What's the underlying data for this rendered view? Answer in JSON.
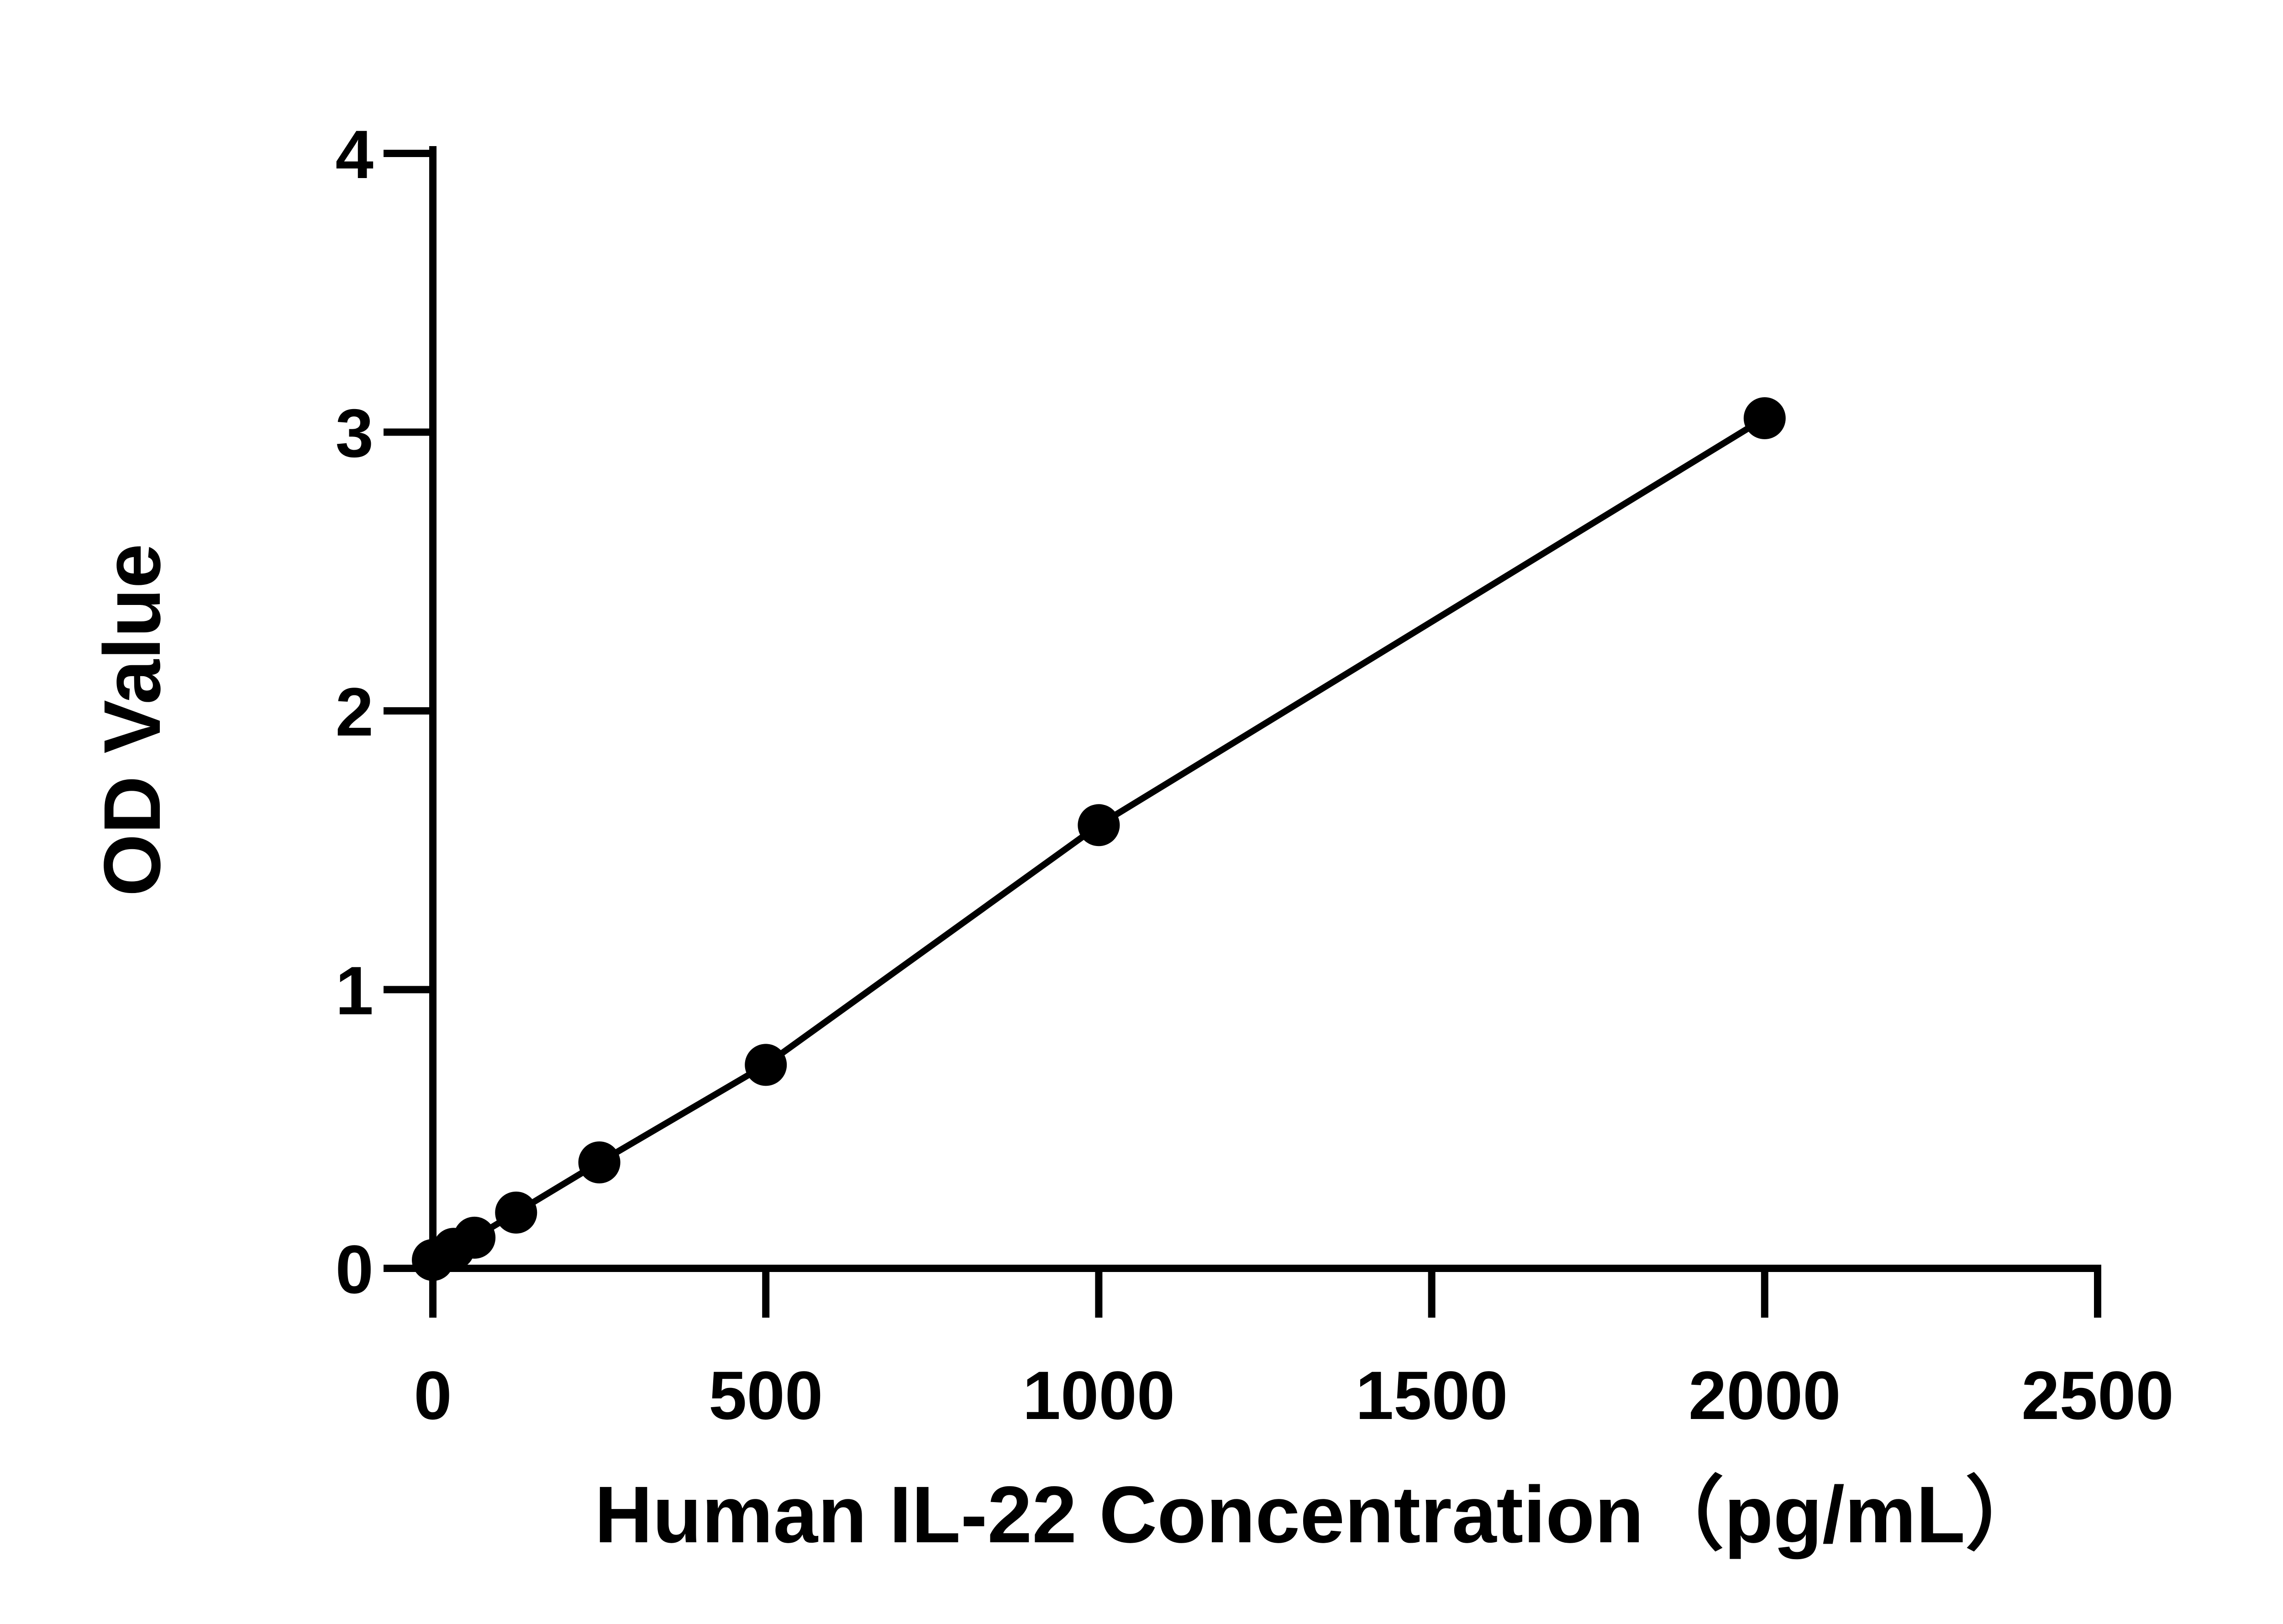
{
  "chart_data": {
    "type": "line",
    "title": "",
    "xlabel": "Human IL-22 Concentration（pg/mL）",
    "ylabel": "OD Value",
    "xlim": [
      0,
      2500
    ],
    "ylim": [
      0,
      4
    ],
    "x_ticks": [
      "0",
      "500",
      "1000",
      "1500",
      "2000",
      "2500"
    ],
    "y_ticks": [
      "0",
      "1",
      "2",
      "3",
      "4"
    ],
    "grid": false,
    "legend": "none",
    "marker": "filled-circle",
    "color": "#000000",
    "series": [
      {
        "x": [
          0,
          31.25,
          62.5,
          125,
          250,
          500,
          1000,
          2000
        ],
        "y": [
          0.03,
          0.07,
          0.11,
          0.2,
          0.38,
          0.73,
          1.59,
          3.05
        ]
      }
    ]
  }
}
